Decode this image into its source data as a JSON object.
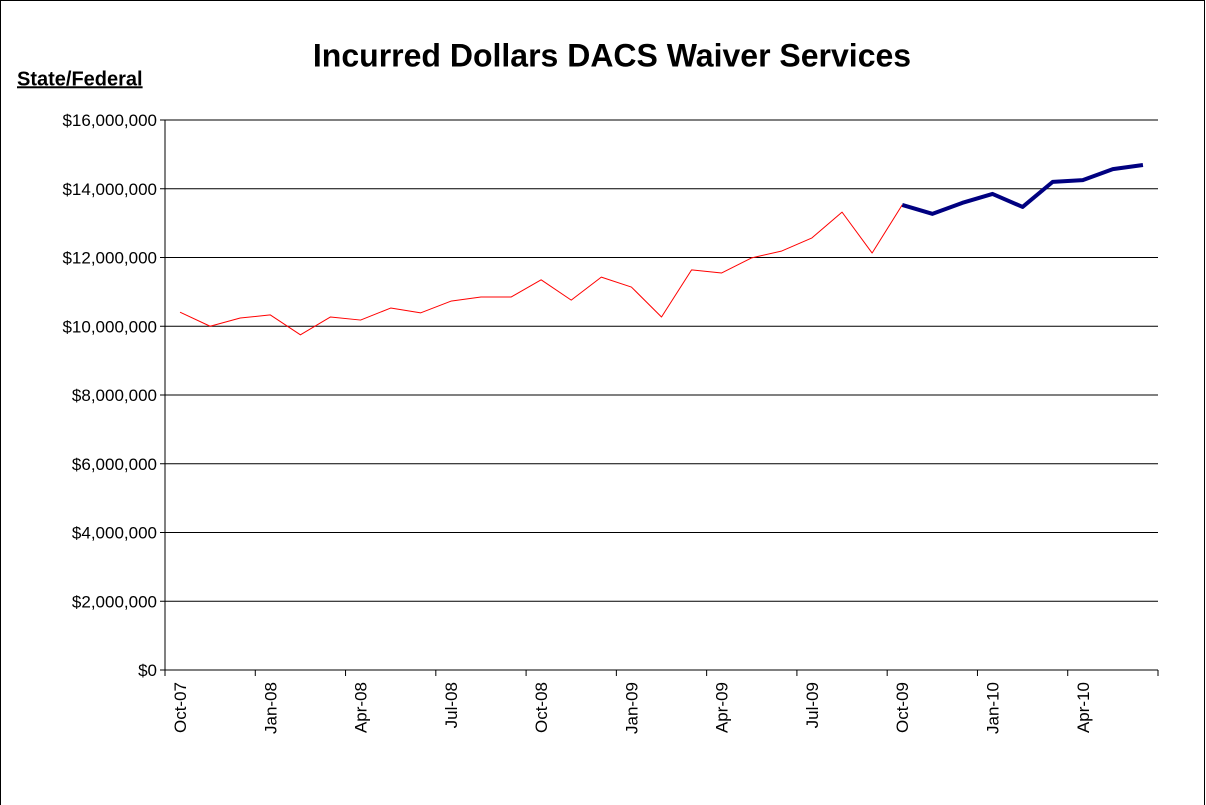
{
  "chart_data": {
    "type": "line",
    "title": "Incurred Dollars DACS Waiver Services",
    "y_label": "State/Federal",
    "categories": [
      "Oct-07",
      null,
      null,
      "Jan-08",
      null,
      null,
      "Apr-08",
      null,
      null,
      "Jul-08",
      null,
      null,
      "Oct-08",
      null,
      null,
      "Jan-09",
      null,
      null,
      "Apr-09",
      null,
      null,
      "Jul-09",
      null,
      null,
      "Oct-09",
      null,
      null,
      "Jan-10",
      null,
      null,
      "Apr-10",
      null,
      null
    ],
    "series": [
      {
        "color": "#ff0000",
        "width": 1,
        "values": [
          10410000,
          10000000,
          10240000,
          10330000,
          9750000,
          10270000,
          10180000,
          10530000,
          10390000,
          10730000,
          10850000,
          10850000,
          11350000,
          10760000,
          11430000,
          11140000,
          10270000,
          11640000,
          11550000,
          11990000,
          12190000,
          12570000,
          13320000,
          12130000,
          13530000,
          null,
          null,
          null,
          null,
          null,
          null,
          null,
          null
        ]
      },
      {
        "color": "#000080",
        "width": 4,
        "values": [
          null,
          null,
          null,
          null,
          null,
          null,
          null,
          null,
          null,
          null,
          null,
          null,
          null,
          null,
          null,
          null,
          null,
          null,
          null,
          null,
          null,
          null,
          null,
          null,
          13530000,
          13270000,
          13590000,
          13850000,
          13470000,
          14200000,
          14250000,
          14570000,
          14690000
        ]
      }
    ],
    "ylim": [
      0,
      16000000
    ],
    "yticks": [
      {
        "value": 0,
        "label": "$0"
      },
      {
        "value": 2000000,
        "label": "$2,000,000"
      },
      {
        "value": 4000000,
        "label": "$4,000,000"
      },
      {
        "value": 6000000,
        "label": "$6,000,000"
      },
      {
        "value": 8000000,
        "label": "$8,000,000"
      },
      {
        "value": 10000000,
        "label": "$10,000,000"
      },
      {
        "value": 12000000,
        "label": "$12,000,000"
      },
      {
        "value": 14000000,
        "label": "$14,000,000"
      },
      {
        "value": 16000000,
        "label": "$16,000,000"
      }
    ],
    "grid": true
  }
}
